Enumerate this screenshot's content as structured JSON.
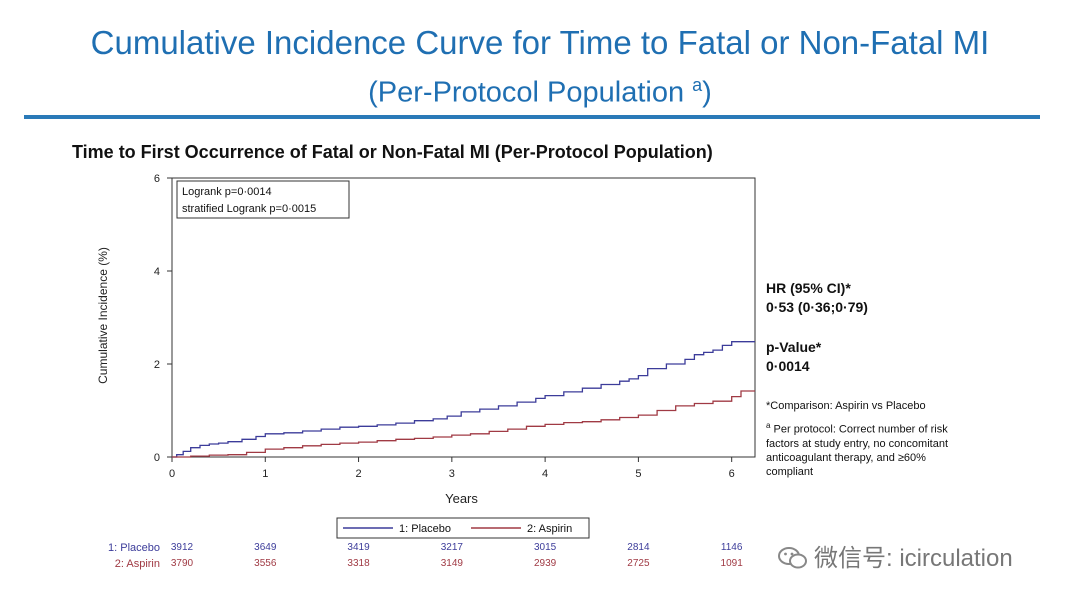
{
  "slide": {
    "title": "Cumulative Incidence Curve for Time to Fatal or Non-Fatal MI",
    "subtitle": "(Per-Protocol Population",
    "subtitle_sup": "a",
    "subtitle_end": ")"
  },
  "side_panel": {
    "hr_title": "HR (95% CI)*",
    "hr_value": "0·53 (0·36;0·79)",
    "pvalue_title": "p-Value*",
    "pvalue_value": "0·0014",
    "comparison_note": "*Comparison: Aspirin vs Placebo",
    "footnote_mark": "a",
    "footnote": "Per protocol: Correct number of risk factors at study entry, no concomitant anticoagulant therapy, and ≥60% compliant"
  },
  "watermark": "微信号: icirculation",
  "chart_data": {
    "type": "line",
    "title": "Time to First Occurrence of Fatal or Non-Fatal MI (Per-Protocol Population)",
    "xlabel": "Years",
    "ylabel": "Cumulative Incidence (%)",
    "xlim": [
      0,
      6.25
    ],
    "ylim": [
      0,
      6
    ],
    "x_ticks": [
      0,
      1,
      2,
      3,
      4,
      5,
      6
    ],
    "y_ticks": [
      0,
      2,
      4,
      6
    ],
    "stats_box": [
      "Logrank p=0·0014",
      "stratified Logrank p=0·0015"
    ],
    "legend_position": "bottom",
    "series": [
      {
        "name": "1: Placebo",
        "color": "#3c3c9a",
        "x": [
          0,
          0.05,
          0.12,
          0.2,
          0.3,
          0.4,
          0.5,
          0.6,
          0.75,
          0.9,
          1.0,
          1.2,
          1.4,
          1.6,
          1.8,
          2.0,
          2.2,
          2.4,
          2.6,
          2.8,
          2.95,
          3.1,
          3.3,
          3.5,
          3.7,
          3.9,
          4.0,
          4.2,
          4.4,
          4.6,
          4.8,
          4.9,
          5.0,
          5.1,
          5.3,
          5.5,
          5.6,
          5.7,
          5.8,
          5.9,
          6.0,
          6.25
        ],
        "y": [
          0,
          0.05,
          0.12,
          0.2,
          0.25,
          0.28,
          0.3,
          0.33,
          0.38,
          0.44,
          0.5,
          0.52,
          0.56,
          0.6,
          0.64,
          0.66,
          0.69,
          0.73,
          0.78,
          0.82,
          0.88,
          0.97,
          1.03,
          1.1,
          1.18,
          1.26,
          1.32,
          1.4,
          1.48,
          1.56,
          1.63,
          1.68,
          1.75,
          1.9,
          2.0,
          2.1,
          2.2,
          2.25,
          2.3,
          2.4,
          2.48,
          2.48
        ]
      },
      {
        "name": "2: Aspirin",
        "color": "#a03a44",
        "x": [
          0,
          0.2,
          0.4,
          0.6,
          0.8,
          1.0,
          1.2,
          1.4,
          1.6,
          1.8,
          2.0,
          2.2,
          2.4,
          2.6,
          2.8,
          3.0,
          3.2,
          3.4,
          3.6,
          3.8,
          4.0,
          4.2,
          4.4,
          4.6,
          4.8,
          5.0,
          5.2,
          5.4,
          5.6,
          5.8,
          5.9,
          6.0,
          6.1,
          6.25
        ],
        "y": [
          0,
          0.02,
          0.04,
          0.05,
          0.1,
          0.17,
          0.2,
          0.24,
          0.27,
          0.3,
          0.32,
          0.35,
          0.38,
          0.4,
          0.43,
          0.47,
          0.5,
          0.55,
          0.6,
          0.66,
          0.7,
          0.74,
          0.76,
          0.8,
          0.85,
          0.9,
          1.0,
          1.1,
          1.15,
          1.2,
          1.2,
          1.3,
          1.42,
          1.42
        ]
      }
    ],
    "at_risk": {
      "x": [
        0,
        1,
        2,
        3,
        4,
        5,
        6
      ],
      "rows": [
        {
          "label": "1: Placebo",
          "values": [
            "3912",
            "3649",
            "3419",
            "3217",
            "3015",
            "2814",
            "1146"
          ]
        },
        {
          "label": "2: Aspirin",
          "values": [
            "3790",
            "3556",
            "3318",
            "3149",
            "2939",
            "2725",
            "1091"
          ]
        }
      ]
    }
  }
}
